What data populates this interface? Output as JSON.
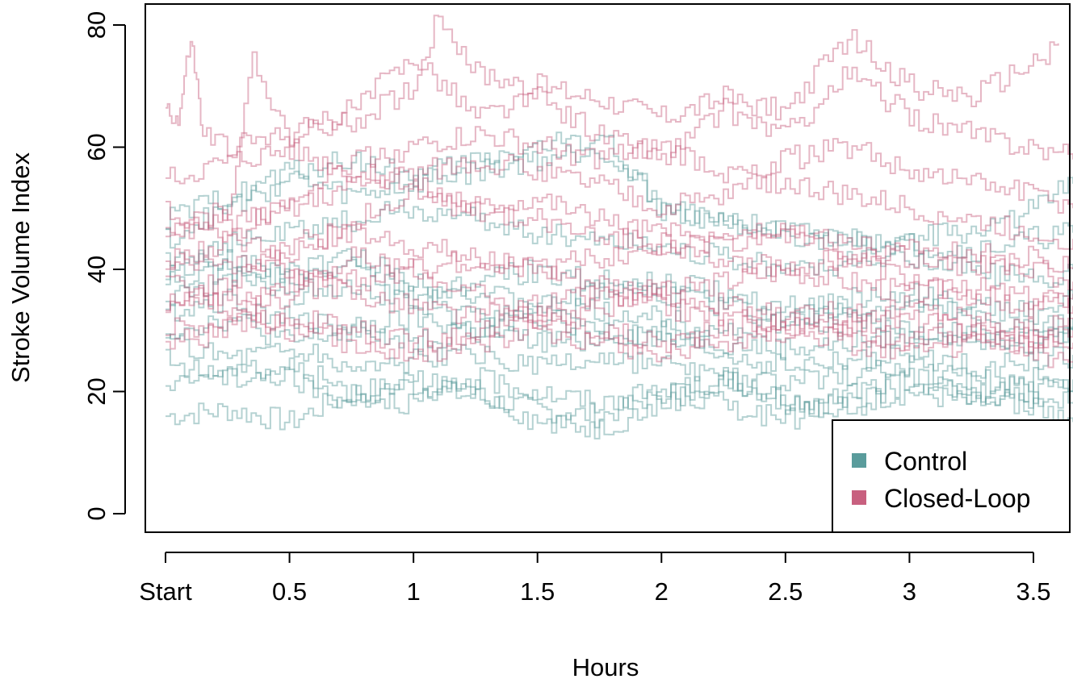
{
  "chart_data": {
    "type": "line",
    "title": "",
    "xlabel": "Hours",
    "ylabel": "Stroke Volume Index",
    "xlim": [
      0,
      3.66
    ],
    "ylim": [
      0,
      80
    ],
    "x_ticks": [
      {
        "value": 0,
        "label": "Start"
      },
      {
        "value": 0.5,
        "label": "0.5"
      },
      {
        "value": 1,
        "label": "1"
      },
      {
        "value": 1.5,
        "label": "1.5"
      },
      {
        "value": 2,
        "label": "2"
      },
      {
        "value": 2.5,
        "label": "2.5"
      },
      {
        "value": 3,
        "label": "3"
      },
      {
        "value": 3.5,
        "label": "3.5"
      }
    ],
    "y_ticks": [
      {
        "value": 0,
        "label": "0"
      },
      {
        "value": 20,
        "label": "20"
      },
      {
        "value": 40,
        "label": "40"
      },
      {
        "value": 60,
        "label": "60"
      },
      {
        "value": 80,
        "label": "80"
      }
    ],
    "grid": false,
    "legend": {
      "position": "bottom-right",
      "entries": [
        {
          "label": "Control",
          "color": "#5a9c9c"
        },
        {
          "label": "Closed-Loop",
          "color": "#c8607f"
        }
      ]
    },
    "groups": [
      {
        "name": "Control",
        "color": "#5a9c9c",
        "series": [
          {
            "x": [
              0,
              0.25,
              0.5,
              0.75,
              1,
              1.25,
              1.5,
              1.75,
              2,
              2.25,
              2.5,
              2.75,
              3,
              3.25,
              3.5,
              3.66
            ],
            "y": [
              16,
              17,
              15,
              20,
              21,
              19,
              17,
              16,
              20,
              22,
              19,
              18,
              20,
              18,
              22,
              20
            ]
          },
          {
            "x": [
              0,
              0.25,
              0.5,
              0.75,
              1,
              1.25,
              1.5,
              1.75,
              2,
              2.25,
              2.5,
              2.75,
              3,
              3.25,
              3.5,
              3.66
            ],
            "y": [
              20,
              24,
              22,
              18,
              22,
              20,
              15,
              14,
              18,
              22,
              18,
              17,
              22,
              20,
              19,
              18
            ]
          },
          {
            "x": [
              0,
              0.25,
              0.5,
              0.75,
              1,
              1.25,
              1.5,
              1.75,
              2,
              2.25,
              2.5,
              2.75,
              3,
              3.25,
              3.5,
              3.66
            ],
            "y": [
              25,
              22,
              24,
              20,
              18,
              22,
              20,
              18,
              20,
              18,
              15,
              20,
              22,
              19,
              18,
              15
            ]
          },
          {
            "x": [
              0,
              0.25,
              0.5,
              0.75,
              1,
              1.25,
              1.5,
              1.75,
              2,
              2.25,
              2.5,
              2.75,
              3,
              3.25,
              3.5,
              3.66
            ],
            "y": [
              30,
              32,
              28,
              30,
              32,
              30,
              28,
              29,
              30,
              28,
              27,
              28,
              29,
              30,
              28,
              30
            ]
          },
          {
            "x": [
              0,
              0.25,
              0.5,
              0.75,
              1,
              1.25,
              1.5,
              1.75,
              2,
              2.25,
              2.5,
              2.75,
              3,
              3.25,
              3.5,
              3.66
            ],
            "y": [
              35,
              38,
              40,
              42,
              38,
              36,
              34,
              33,
              32,
              30,
              31,
              32,
              30,
              29,
              28,
              30
            ]
          },
          {
            "x": [
              0,
              0.25,
              0.5,
              0.75,
              1,
              1.25,
              1.5,
              1.75,
              2,
              2.25,
              2.5,
              2.75,
              3,
              3.25,
              3.5,
              3.66
            ],
            "y": [
              42,
              44,
              46,
              48,
              50,
              48,
              46,
              45,
              44,
              42,
              40,
              41,
              42,
              40,
              38,
              40
            ]
          },
          {
            "x": [
              0,
              0.25,
              0.5,
              0.75,
              1,
              1.25,
              1.5,
              1.75,
              2,
              2.25,
              2.5,
              2.75,
              3,
              3.25,
              3.5,
              3.66
            ],
            "y": [
              45,
              50,
              55,
              52,
              54,
              56,
              58,
              60,
              50,
              48,
              46,
              45,
              44,
              43,
              45,
              46
            ]
          },
          {
            "x": [
              0,
              0.25,
              0.5,
              0.75,
              1,
              1.25,
              1.5,
              1.75,
              2,
              2.25,
              2.5,
              2.75,
              3,
              3.25,
              3.5,
              3.66
            ],
            "y": [
              48,
              52,
              56,
              58,
              55,
              58,
              60,
              62,
              50,
              47,
              46,
              44,
              45,
              46,
              50,
              54
            ]
          },
          {
            "x": [
              0,
              0.25,
              0.5,
              0.75,
              1,
              1.25,
              1.5,
              1.75,
              2,
              2.25,
              2.5,
              2.75,
              3,
              3.25,
              3.5,
              3.66
            ],
            "y": [
              38,
              40,
              36,
              38,
              34,
              32,
              34,
              36,
              38,
              36,
              34,
              35,
              36,
              34,
              33,
              35
            ]
          },
          {
            "x": [
              0,
              0.25,
              0.5,
              0.75,
              1,
              1.25,
              1.5,
              1.75,
              2,
              2.25,
              2.5,
              2.75,
              3,
              3.25,
              3.5,
              3.66
            ],
            "y": [
              33,
              35,
              32,
              30,
              28,
              30,
              32,
              30,
              28,
              26,
              24,
              25,
              26,
              24,
              25,
              26
            ]
          },
          {
            "x": [
              0,
              0.25,
              0.5,
              0.75,
              1,
              1.25,
              1.5,
              1.75,
              2,
              2.25,
              2.5,
              2.75,
              3,
              3.25,
              3.5,
              3.66
            ],
            "y": [
              28,
              26,
              27,
              24,
              25,
              26,
              24,
              25,
              24,
              22,
              21,
              23,
              24,
              22,
              20,
              22
            ]
          },
          {
            "x": [
              0,
              0.25,
              0.5,
              0.75,
              1,
              1.25,
              1.5,
              1.75,
              2,
              2.25,
              2.5,
              2.75,
              3,
              3.25,
              3.5,
              3.66
            ],
            "y": [
              40,
              42,
              38,
              40,
              36,
              38,
              40,
              38,
              36,
              34,
              32,
              33,
              34,
              32,
              30,
              32
            ]
          }
        ]
      },
      {
        "name": "Closed-Loop",
        "color": "#c8607f",
        "series": [
          {
            "x": [
              0,
              0.05,
              0.1,
              0.15,
              0.25,
              0.5,
              0.75,
              1,
              1.1,
              1.25,
              1.5,
              1.75,
              2,
              2.25,
              2.5,
              2.75,
              3,
              3.25,
              3.5,
              3.6
            ],
            "y": [
              67,
              64,
              78,
              62,
              60,
              62,
              64,
              70,
              82,
              72,
              70,
              68,
              65,
              68,
              66,
              78,
              70,
              68,
              74,
              77
            ]
          },
          {
            "x": [
              0,
              0.25,
              0.35,
              0.5,
              0.75,
              1,
              1.25,
              1.5,
              1.75,
              2,
              2.25,
              2.5,
              2.75,
              3,
              3.25,
              3.5,
              3.66
            ],
            "y": [
              45,
              50,
              74,
              62,
              66,
              75,
              65,
              68,
              62,
              58,
              66,
              62,
              72,
              65,
              62,
              60,
              58
            ]
          },
          {
            "x": [
              0,
              0.25,
              0.5,
              0.75,
              1,
              1.25,
              1.5,
              1.75,
              2,
              2.25,
              2.5,
              2.75,
              3,
              3.25,
              3.5,
              3.66
            ],
            "y": [
              40,
              45,
              52,
              58,
              60,
              62,
              60,
              58,
              60,
              56,
              54,
              52,
              50,
              48,
              46,
              45
            ]
          },
          {
            "x": [
              0,
              0.25,
              0.5,
              0.75,
              1,
              1.25,
              1.5,
              1.75,
              2,
              2.25,
              2.5,
              2.75,
              3,
              3.25,
              3.5,
              3.66
            ],
            "y": [
              35,
              38,
              42,
              48,
              52,
              50,
              48,
              46,
              44,
              45,
              46,
              44,
              42,
              43,
              40,
              38
            ]
          },
          {
            "x": [
              0,
              0.25,
              0.5,
              0.75,
              1,
              1.25,
              1.5,
              1.75,
              2,
              2.25,
              2.5,
              2.75,
              3,
              3.25,
              3.5,
              3.66
            ],
            "y": [
              30,
              32,
              36,
              38,
              40,
              42,
              40,
              38,
              36,
              38,
              40,
              38,
              36,
              37,
              35,
              34
            ]
          },
          {
            "x": [
              0,
              0.25,
              0.5,
              0.75,
              1,
              1.25,
              1.5,
              1.75,
              2,
              2.25,
              2.5,
              2.75,
              3,
              3.25,
              3.5,
              3.66
            ],
            "y": [
              28,
              30,
              32,
              30,
              28,
              30,
              32,
              30,
              28,
              30,
              32,
              30,
              28,
              30,
              29,
              28
            ]
          },
          {
            "x": [
              0,
              0.25,
              0.5,
              0.75,
              1,
              1.25,
              1.5,
              1.75,
              2,
              2.25,
              2.5,
              2.75,
              3,
              3.25,
              3.5,
              3.66
            ],
            "y": [
              50,
              46,
              40,
              36,
              34,
              32,
              34,
              36,
              34,
              32,
              30,
              31,
              32,
              30,
              28,
              30
            ]
          },
          {
            "x": [
              0,
              0.25,
              0.5,
              0.75,
              1,
              1.25,
              1.5,
              1.75,
              2,
              2.25,
              2.5,
              2.75,
              3,
              3.25,
              3.5,
              3.66
            ],
            "y": [
              42,
              40,
              44,
              46,
              44,
              42,
              40,
              42,
              44,
              42,
              40,
              42,
              38,
              36,
              34,
              36
            ]
          },
          {
            "x": [
              0,
              0.25,
              0.5,
              0.75,
              1,
              1.25,
              1.5,
              1.75,
              2,
              2.25,
              2.5,
              2.75,
              3,
              3.25,
              3.5,
              3.66
            ],
            "y": [
              34,
              36,
              30,
              28,
              26,
              28,
              30,
              28,
              26,
              28,
              30,
              28,
              26,
              28,
              26,
              25
            ]
          },
          {
            "x": [
              0,
              0.25,
              0.5,
              0.75,
              1,
              1.25,
              1.5,
              1.75,
              2,
              2.25,
              2.5,
              2.75,
              3,
              3.25,
              3.5,
              3.66
            ],
            "y": [
              55,
              58,
              60,
              56,
              54,
              50,
              52,
              48,
              46,
              44,
              46,
              42,
              44,
              40,
              42,
              40
            ]
          },
          {
            "x": [
              0,
              0.25,
              0.5,
              0.75,
              1,
              1.25,
              1.5,
              1.75,
              2,
              2.25,
              2.5,
              2.75,
              3,
              3.25,
              3.5,
              3.66
            ],
            "y": [
              38,
              34,
              38,
              42,
              40,
              36,
              32,
              34,
              36,
              34,
              32,
              33,
              34,
              32,
              30,
              32
            ]
          },
          {
            "x": [
              0,
              0.25,
              0.5,
              0.75,
              1,
              1.25,
              1.5,
              1.75,
              2,
              2.25,
              2.5,
              2.75,
              3,
              3.25,
              3.5,
              3.66
            ],
            "y": [
              45,
              48,
              50,
              54,
              56,
              58,
              56,
              54,
              50,
              52,
              58,
              60,
              56,
              54,
              52,
              50
            ]
          }
        ]
      }
    ]
  }
}
